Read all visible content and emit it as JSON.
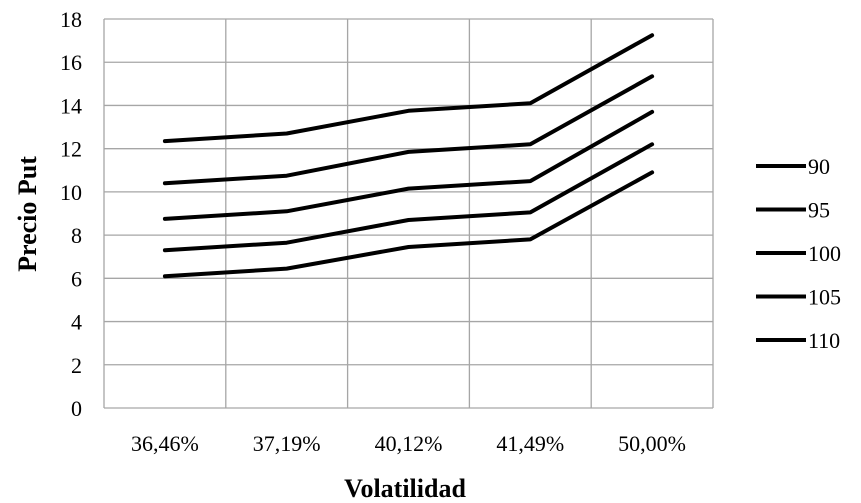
{
  "chart_data": {
    "type": "line",
    "title": "",
    "xlabel": "Volatilidad",
    "ylabel": "Precio Put",
    "categories": [
      "36,46%",
      "37,19%",
      "40,12%",
      "41,49%",
      "50,00%"
    ],
    "ylim": [
      0,
      18
    ],
    "yticks": [
      0,
      2,
      4,
      6,
      8,
      10,
      12,
      14,
      16,
      18
    ],
    "ytick_labels": [
      "0",
      "2",
      "4",
      "6",
      "8",
      "10",
      "12",
      "14",
      "16",
      "18"
    ],
    "grid": true,
    "legend_position": "right",
    "series": [
      {
        "name": "90",
        "values": [
          6.1,
          6.45,
          7.45,
          7.8,
          10.9
        ]
      },
      {
        "name": "95",
        "values": [
          7.3,
          7.65,
          8.7,
          9.05,
          12.2
        ]
      },
      {
        "name": "100",
        "values": [
          8.75,
          9.1,
          10.15,
          10.5,
          13.7
        ]
      },
      {
        "name": "105",
        "values": [
          10.4,
          10.75,
          11.85,
          12.2,
          15.35
        ]
      },
      {
        "name": "110",
        "values": [
          12.35,
          12.7,
          13.75,
          14.1,
          17.25
        ]
      }
    ],
    "line_color": "#000000"
  }
}
